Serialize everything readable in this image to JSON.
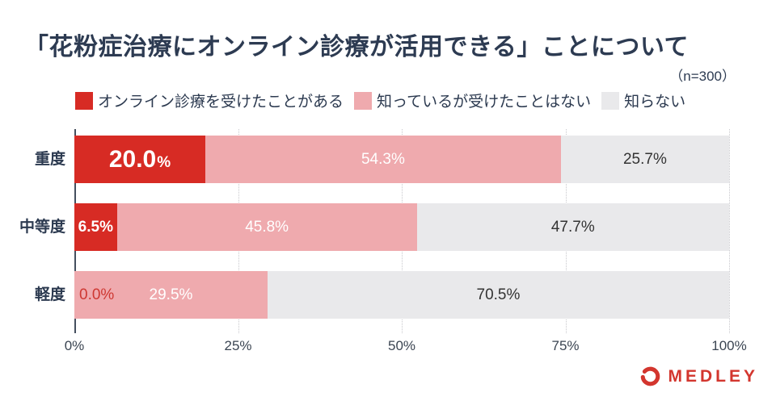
{
  "title": "「花粉症治療にオンライン診療が活用できる」ことについて",
  "sample_size": "（n=300）",
  "legend": [
    {
      "label": "オンライン診療を受けたことがある",
      "color": "#d72b24"
    },
    {
      "label": "知っているが受けたことはない",
      "color": "#efaaae"
    },
    {
      "label": "知らない",
      "color": "#e9e9eb"
    }
  ],
  "chart_data": {
    "type": "bar",
    "orientation": "horizontal",
    "stacked": true,
    "title": "「花粉症治療にオンライン診療が活用できる」ことについて",
    "sample_size": 300,
    "categories": [
      "重度",
      "中等度",
      "軽度"
    ],
    "series": [
      {
        "name": "オンライン診療を受けたことがある",
        "color": "#d72b24",
        "values": [
          20.0,
          6.5,
          0.0
        ]
      },
      {
        "name": "知っているが受けたことはない",
        "color": "#efaaae",
        "values": [
          54.3,
          45.8,
          29.5
        ]
      },
      {
        "name": "知らない",
        "color": "#e9e9eb",
        "values": [
          25.7,
          47.7,
          70.5
        ]
      }
    ],
    "rows": [
      {
        "category": "重度",
        "segments": [
          {
            "value": 20.0,
            "label": "20.0%",
            "color": "#d72b24",
            "label_style": "big"
          },
          {
            "value": 54.3,
            "label": "54.3%",
            "color": "#efaaae",
            "label_style": "white"
          },
          {
            "value": 25.7,
            "label": "25.7%",
            "color": "#e9e9eb",
            "label_style": "dark"
          }
        ]
      },
      {
        "category": "中等度",
        "segments": [
          {
            "value": 6.5,
            "label": "6.5%",
            "color": "#d72b24",
            "label_style": "bold-white"
          },
          {
            "value": 45.8,
            "label": "45.8%",
            "color": "#efaaae",
            "label_style": "white"
          },
          {
            "value": 47.7,
            "label": "47.7%",
            "color": "#e9e9eb",
            "label_style": "dark"
          }
        ]
      },
      {
        "category": "軽度",
        "segments": [
          {
            "value": 0.0,
            "label": "0.0%",
            "color": "#d72b24",
            "label_style": "zero"
          },
          {
            "value": 29.5,
            "label": "29.5%",
            "color": "#efaaae",
            "label_style": "white"
          },
          {
            "value": 70.5,
            "label": "70.5%",
            "color": "#e9e9eb",
            "label_style": "dark"
          }
        ]
      }
    ],
    "x_ticks": [
      {
        "label": "0%",
        "value": 0
      },
      {
        "label": "25%",
        "value": 25
      },
      {
        "label": "50%",
        "value": 50
      },
      {
        "label": "75%",
        "value": 75
      },
      {
        "label": "100%",
        "value": 100
      }
    ],
    "xlim": [
      0,
      100
    ],
    "grid": "dotted-vertical",
    "legend_position": "top"
  },
  "branding": {
    "logo_text": "MEDLEY",
    "color": "#d3362e"
  }
}
